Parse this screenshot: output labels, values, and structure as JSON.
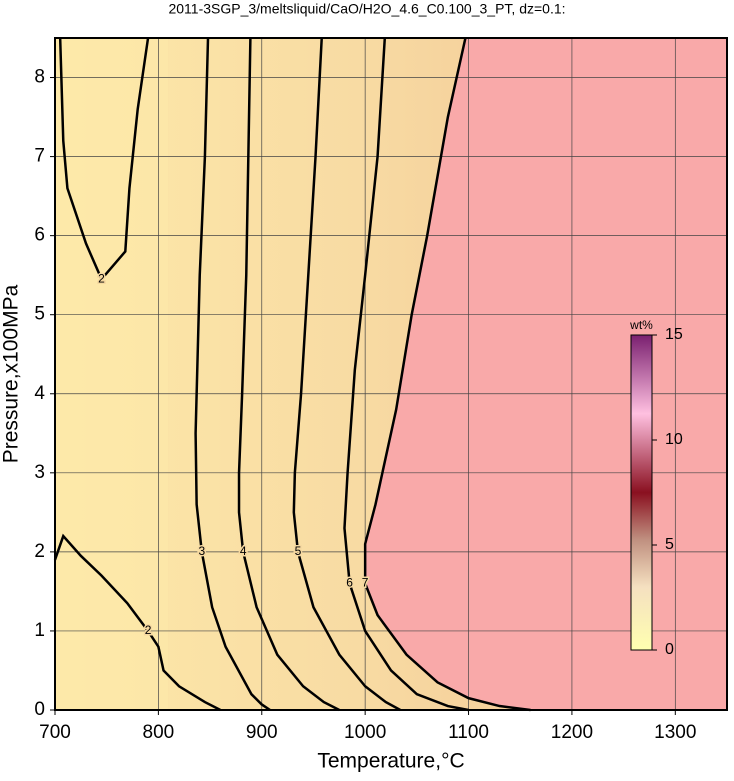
{
  "chart_data": {
    "type": "contour",
    "title": "2011-3SGP_3/meltsliquid/CaO/H2O_4.6_C0.100_3_PT, dz=0.1:",
    "x_label": "Temperature,°C",
    "y_label": "Pressure,x100MPa",
    "xlim": [
      700,
      1350
    ],
    "ylim": [
      0,
      8.5
    ],
    "xticks": [
      700,
      800,
      900,
      1000,
      1100,
      1200,
      1300
    ],
    "yticks": [
      0,
      1,
      2,
      3,
      4,
      5,
      6,
      7,
      8
    ],
    "grid": true,
    "solid_color": "#f9a9a9",
    "melt_color": "#fde9a9",
    "contours": [
      {
        "level": 2,
        "x": [
          705,
          708,
          712,
          730,
          745,
          768,
          772,
          780,
          790
        ],
        "y": [
          8.5,
          7.2,
          6.6,
          5.9,
          5.45,
          5.8,
          6.6,
          7.6,
          8.5
        ]
      },
      {
        "level": 2,
        "x": [
          700,
          708,
          725,
          745,
          770,
          790,
          800,
          805,
          820,
          845,
          860
        ],
        "y": [
          1.9,
          2.2,
          1.95,
          1.7,
          1.35,
          1.0,
          0.8,
          0.5,
          0.3,
          0.1,
          0
        ]
      },
      {
        "level": 3,
        "x": [
          848,
          845,
          840,
          838,
          836,
          837,
          842,
          852,
          865,
          890,
          900,
          908
        ],
        "y": [
          8.5,
          7,
          5.5,
          4.5,
          3.5,
          2.6,
          2,
          1.3,
          0.8,
          0.2,
          0.07,
          0
        ]
      },
      {
        "level": 4,
        "x": [
          889,
          887,
          885,
          881,
          878,
          878,
          882,
          895,
          915,
          940,
          960,
          975
        ],
        "y": [
          8.5,
          7,
          5.5,
          4,
          3,
          2.5,
          2,
          1.3,
          0.7,
          0.3,
          0.1,
          0
        ]
      },
      {
        "level": 5,
        "x": [
          958,
          952,
          945,
          938,
          932,
          931,
          935,
          950,
          975,
          1000,
          1020,
          1034
        ],
        "y": [
          8.5,
          7,
          5.5,
          4,
          3,
          2.5,
          2,
          1.3,
          0.7,
          0.3,
          0.1,
          0
        ]
      },
      {
        "level": 6,
        "x": [
          1019,
          1012,
          1000,
          990,
          983,
          980,
          985,
          1000,
          1025,
          1050,
          1080,
          1100
        ],
        "y": [
          8.5,
          7,
          5.5,
          4.3,
          3,
          2.3,
          1.6,
          1.0,
          0.5,
          0.2,
          0.05,
          0
        ]
      },
      {
        "level": 7,
        "x": [
          1097,
          1080,
          1060,
          1045,
          1030,
          1010,
          1000,
          1000,
          1012,
          1040,
          1070,
          1100,
          1130,
          1160
        ],
        "y": [
          8.5,
          7.5,
          6,
          5,
          3.8,
          2.6,
          2.1,
          1.6,
          1.2,
          0.7,
          0.35,
          0.15,
          0.05,
          0
        ]
      }
    ],
    "colorbar": {
      "label": "wt%",
      "lim": [
        0,
        15
      ],
      "ticks": [
        0,
        5,
        10,
        15
      ]
    }
  }
}
